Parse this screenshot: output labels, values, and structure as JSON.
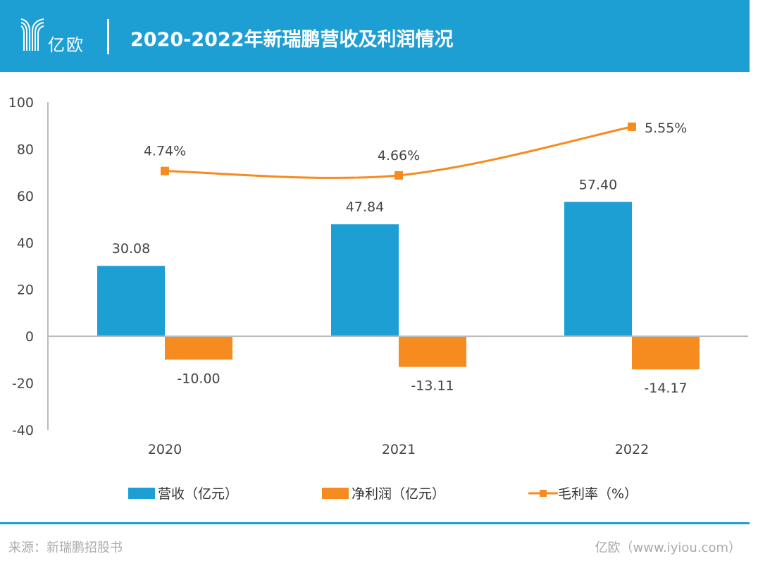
{
  "header": {
    "logo_text": "亿欧",
    "title": "2020-2022年新瑞鹏营收及利润情况"
  },
  "chart_data": {
    "type": "bar",
    "categories": [
      "2020",
      "2021",
      "2022"
    ],
    "series": [
      {
        "name": "营收（亿元）",
        "type": "bar",
        "color": "#1e9fd4",
        "values": [
          30.08,
          47.84,
          57.4
        ],
        "labels": [
          "30.08",
          "47.84",
          "57.40"
        ]
      },
      {
        "name": "净利润（亿元）",
        "type": "bar",
        "color": "#f68b1f",
        "values": [
          -10.0,
          -13.11,
          -14.17
        ],
        "labels": [
          "-10.00",
          "-13.11",
          "-14.17"
        ]
      },
      {
        "name": "毛利率（%）",
        "type": "line",
        "axis": "secondary",
        "color": "#f68b1f",
        "values": [
          4.74,
          4.66,
          5.55
        ],
        "labels": [
          "4.74%",
          "4.66%",
          "5.55%"
        ]
      }
    ],
    "ylim": [
      -40,
      100
    ],
    "yticks": [
      "100",
      "80",
      "60",
      "40",
      "20",
      "0",
      "-20",
      "-40"
    ],
    "ytick_values": [
      100,
      80,
      60,
      40,
      20,
      0,
      -20,
      -40
    ],
    "y2lim": [
      0,
      6
    ],
    "grid": false,
    "legend": "bottom"
  },
  "footer": {
    "source": "来源：新瑞鹏招股书",
    "credit": "亿欧（www.iyiou.com）"
  }
}
